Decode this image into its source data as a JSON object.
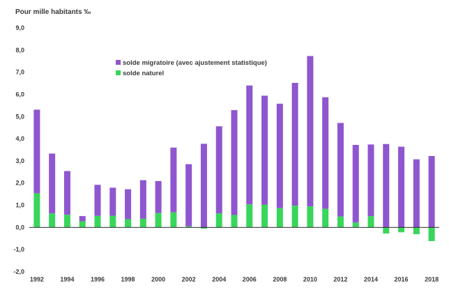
{
  "chart_data": {
    "type": "bar",
    "stacked": true,
    "unit_label": "Pour mille habitants ‰",
    "ylim": [
      -2,
      9
    ],
    "yticks": [
      "-2,0",
      "-1,0",
      "0,0",
      "1,0",
      "2,0",
      "3,0",
      "4,0",
      "5,0",
      "6,0",
      "7,0",
      "8,0",
      "9,0"
    ],
    "ytick_values": [
      -2,
      -1,
      0,
      1,
      2,
      3,
      4,
      5,
      6,
      7,
      8,
      9
    ],
    "categories": [
      1992,
      1993,
      1994,
      1995,
      1996,
      1997,
      1998,
      1999,
      2000,
      2001,
      2002,
      2003,
      2004,
      2005,
      2006,
      2007,
      2008,
      2009,
      2010,
      2011,
      2012,
      2013,
      2014,
      2015,
      2016,
      2017,
      2018
    ],
    "xtick_labels": [
      "1992",
      "1994",
      "1996",
      "1998",
      "2000",
      "2002",
      "2004",
      "2006",
      "2008",
      "2010",
      "2012",
      "2014",
      "2016",
      "2018"
    ],
    "series": [
      {
        "name": "solde migratoire (avec ajustement statistique)",
        "color": "#8e56cf",
        "values": [
          3.77,
          2.7,
          1.97,
          0.23,
          1.4,
          1.26,
          1.35,
          1.74,
          1.44,
          2.92,
          2.8,
          3.77,
          3.93,
          4.73,
          5.36,
          4.92,
          4.71,
          5.54,
          6.78,
          5.03,
          4.22,
          3.5,
          3.23,
          3.76,
          3.64,
          3.07,
          3.22
        ]
      },
      {
        "name": "solde naturel",
        "color": "#38d65a",
        "values": [
          1.54,
          0.63,
          0.57,
          0.28,
          0.52,
          0.53,
          0.37,
          0.39,
          0.65,
          0.68,
          0.05,
          -0.06,
          0.63,
          0.56,
          1.04,
          1.02,
          0.87,
          0.98,
          0.95,
          0.84,
          0.49,
          0.22,
          0.51,
          -0.28,
          -0.22,
          -0.31,
          -0.62
        ]
      }
    ],
    "legend_position": "top-left",
    "grid": false
  }
}
